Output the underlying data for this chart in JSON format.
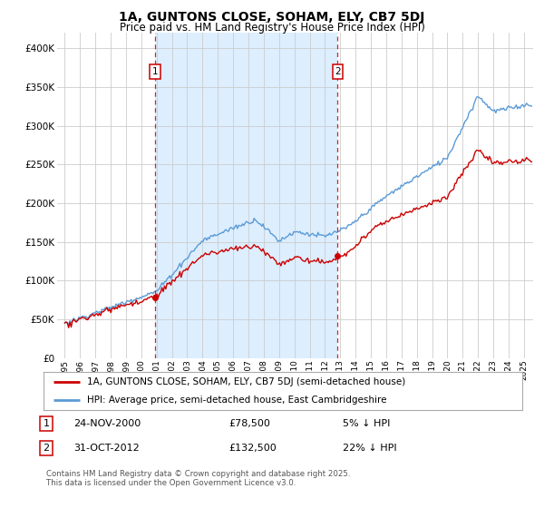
{
  "title_line1": "1A, GUNTONS CLOSE, SOHAM, ELY, CB7 5DJ",
  "title_line2": "Price paid vs. HM Land Registry's House Price Index (HPI)",
  "ylabel_ticks": [
    "£0",
    "£50K",
    "£100K",
    "£150K",
    "£200K",
    "£250K",
    "£300K",
    "£350K",
    "£400K"
  ],
  "ytick_values": [
    0,
    50000,
    100000,
    150000,
    200000,
    250000,
    300000,
    350000,
    400000
  ],
  "ylim": [
    0,
    420000
  ],
  "xlim_start": 1994.5,
  "xlim_end": 2025.6,
  "xtick_years": [
    1995,
    1996,
    1997,
    1998,
    1999,
    2000,
    2001,
    2002,
    2003,
    2004,
    2005,
    2006,
    2007,
    2008,
    2009,
    2010,
    2011,
    2012,
    2013,
    2014,
    2015,
    2016,
    2017,
    2018,
    2019,
    2020,
    2021,
    2022,
    2023,
    2024,
    2025
  ],
  "sale1_x": 2000.9,
  "sale1_y": 78500,
  "sale1_label": "1",
  "sale1_date": "24-NOV-2000",
  "sale1_price": "£78,500",
  "sale1_hpi": "5% ↓ HPI",
  "sale2_x": 2012.83,
  "sale2_y": 132500,
  "sale2_label": "2",
  "sale2_date": "31-OCT-2012",
  "sale2_price": "£132,500",
  "sale2_hpi": "22% ↓ HPI",
  "hpi_color": "#5b9bd5",
  "price_color": "#cc0000",
  "vline_color": "#cc0000",
  "shade_color": "#ddeeff",
  "legend_label1": "1A, GUNTONS CLOSE, SOHAM, ELY, CB7 5DJ (semi-detached house)",
  "legend_label2": "HPI: Average price, semi-detached house, East Cambridgeshire",
  "footer": "Contains HM Land Registry data © Crown copyright and database right 2025.\nThis data is licensed under the Open Government Licence v3.0.",
  "bg_color": "#ffffff",
  "plot_bg_color": "#ffffff",
  "grid_color": "#cccccc"
}
